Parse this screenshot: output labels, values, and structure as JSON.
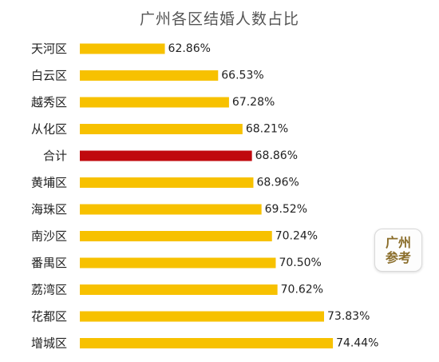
{
  "chart_data": {
    "type": "bar",
    "orientation": "horizontal",
    "title": "广州各区结婚人数占比",
    "categories": [
      "天河区",
      "白云区",
      "越秀区",
      "从化区",
      "合计",
      "黄埔区",
      "海珠区",
      "南沙区",
      "番禺区",
      "荔湾区",
      "花都区",
      "增城区"
    ],
    "values": [
      62.86,
      66.53,
      67.28,
      68.21,
      68.86,
      68.96,
      69.52,
      70.24,
      70.5,
      70.62,
      73.83,
      74.44
    ],
    "value_labels": [
      "62.86%",
      "66.53%",
      "67.28%",
      "68.21%",
      "68.86%",
      "68.96%",
      "69.52%",
      "70.24%",
      "70.50%",
      "70.62%",
      "73.83%",
      "74.44%"
    ],
    "xlim": [
      57,
      79
    ],
    "highlight_category": "合计",
    "colors": {
      "bar": "#F7C100",
      "highlight": "#C0090E"
    },
    "grid": false,
    "legend": "none"
  },
  "logo": {
    "line1": "广州",
    "line2": "参考"
  }
}
